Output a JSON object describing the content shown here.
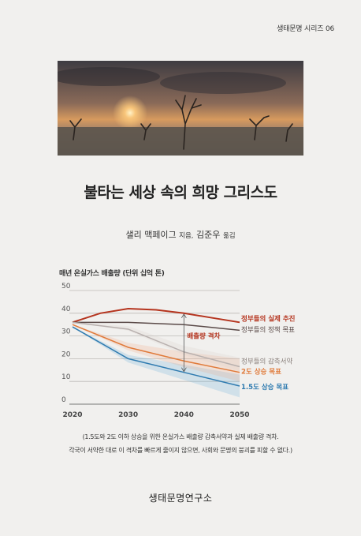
{
  "series_label": "생태문명 시리즈 06",
  "book": {
    "title": "불타는 세상 속의 희망 그리스도",
    "author": "샐리 맥페이그",
    "author_role": "지음,",
    "translator": "김준우",
    "translator_role": "옮김"
  },
  "chart_data": {
    "type": "line",
    "title": "매년 온실가스 배출량 (단위 십억 톤)",
    "x_ticks": [
      "2020",
      "2030",
      "2040",
      "2050"
    ],
    "y_ticks": [
      "0",
      "10",
      "20",
      "30",
      "40",
      "50"
    ],
    "xlim": [
      2020,
      2050
    ],
    "ylim": [
      0,
      50
    ],
    "grid": true,
    "series": [
      {
        "name": "정부들의 실제 추진",
        "color": "#b5341e",
        "x": [
          2020,
          2025,
          2030,
          2035,
          2040,
          2045,
          2050
        ],
        "y": [
          36,
          40,
          42,
          41.5,
          40,
          38,
          36
        ]
      },
      {
        "name": "정부들의 정책 목표",
        "color": "#5a4a48",
        "x": [
          2020,
          2030,
          2040,
          2050
        ],
        "y": [
          36,
          36,
          35,
          32.5
        ]
      },
      {
        "name": "정부들의 감축서약",
        "color": "#b8b0ae",
        "x": [
          2020,
          2030,
          2040,
          2050
        ],
        "y": [
          36,
          33,
          23,
          16.5
        ]
      },
      {
        "name": "2도 상승 목표",
        "color": "#e07a3a",
        "x": [
          2020,
          2030,
          2040,
          2050
        ],
        "y": [
          35,
          25,
          19,
          14
        ]
      },
      {
        "name": "1.5도 상승 목표",
        "color": "#2f7bb0",
        "x": [
          2020,
          2030,
          2040,
          2050
        ],
        "y": [
          34,
          20,
          14,
          8
        ]
      }
    ],
    "gap_annotation": {
      "label": "배출량 격차",
      "x": 2040,
      "from": 40,
      "to": 14
    }
  },
  "caption": {
    "line1": "(1.5도와 2도 이하 상승을 위한 온실가스 배출량 감축서약과 실제 배출량 격차.",
    "line2": "각국이 서약한 대로 이 격차를 빠르게 줄이지 않으면, 사회와 문명의 붕괴를 피할 수 없다.)"
  },
  "publisher": "생태문명연구소"
}
